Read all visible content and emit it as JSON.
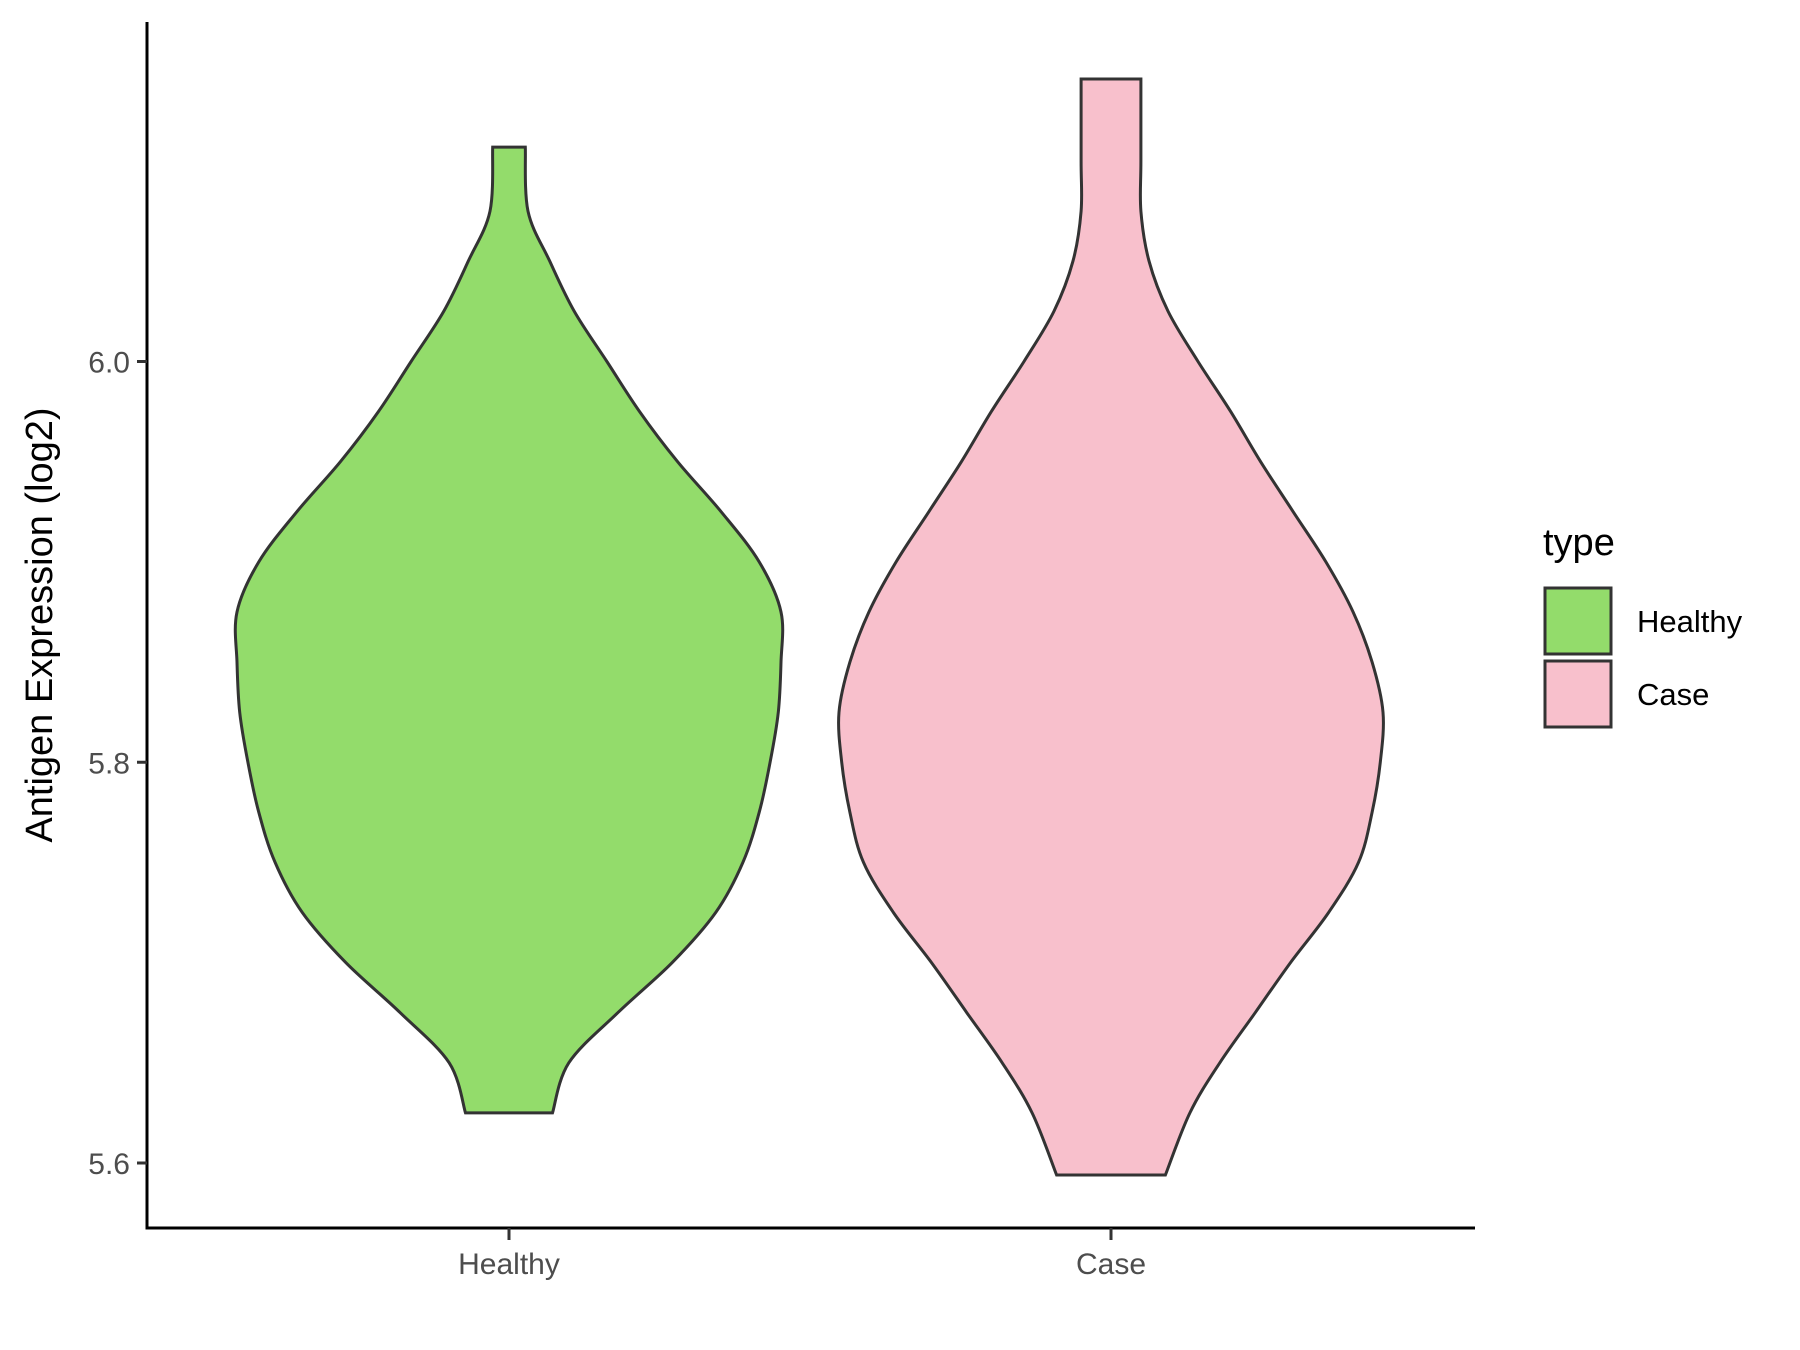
{
  "chart_data": {
    "type": "violin",
    "title": "",
    "xlabel": "",
    "ylabel": "Antigen Expression (log2)",
    "categories": [
      "Healthy",
      "Case"
    ],
    "yticks": [
      "5.6",
      "5.8",
      "6.0"
    ],
    "ylim": [
      5.57,
      6.17
    ],
    "grid": false,
    "legend": {
      "title": "type",
      "position": "right",
      "entries": [
        {
          "label": "Healthy",
          "color": "#93DC6B"
        },
        {
          "label": "Case",
          "color": "#F8C0CC"
        }
      ]
    },
    "series": [
      {
        "category": "Healthy",
        "color": "#93DC6B",
        "min": 5.625,
        "max": 6.107,
        "profile": [
          [
            5.625,
            0.16
          ],
          [
            5.65,
            0.22
          ],
          [
            5.675,
            0.4
          ],
          [
            5.7,
            0.6
          ],
          [
            5.725,
            0.76
          ],
          [
            5.75,
            0.86
          ],
          [
            5.775,
            0.92
          ],
          [
            5.8,
            0.96
          ],
          [
            5.825,
            0.99
          ],
          [
            5.85,
            1.0
          ],
          [
            5.875,
            1.0
          ],
          [
            5.9,
            0.92
          ],
          [
            5.925,
            0.78
          ],
          [
            5.95,
            0.62
          ],
          [
            5.975,
            0.48
          ],
          [
            6.0,
            0.36
          ],
          [
            6.025,
            0.24
          ],
          [
            6.05,
            0.15
          ],
          [
            6.075,
            0.07
          ],
          [
            6.107,
            0.06
          ]
        ]
      },
      {
        "category": "Case",
        "color": "#F8C0CC",
        "min": 5.594,
        "max": 6.141,
        "profile": [
          [
            5.594,
            0.2
          ],
          [
            5.625,
            0.29
          ],
          [
            5.65,
            0.4
          ],
          [
            5.675,
            0.53
          ],
          [
            5.7,
            0.66
          ],
          [
            5.725,
            0.8
          ],
          [
            5.75,
            0.91
          ],
          [
            5.775,
            0.96
          ],
          [
            5.8,
            0.99
          ],
          [
            5.825,
            1.0
          ],
          [
            5.85,
            0.96
          ],
          [
            5.875,
            0.89
          ],
          [
            5.9,
            0.79
          ],
          [
            5.925,
            0.67
          ],
          [
            5.95,
            0.55
          ],
          [
            5.975,
            0.44
          ],
          [
            6.0,
            0.32
          ],
          [
            6.025,
            0.21
          ],
          [
            6.05,
            0.14
          ],
          [
            6.075,
            0.11
          ],
          [
            6.1,
            0.11
          ],
          [
            6.141,
            0.11
          ]
        ]
      }
    ]
  }
}
